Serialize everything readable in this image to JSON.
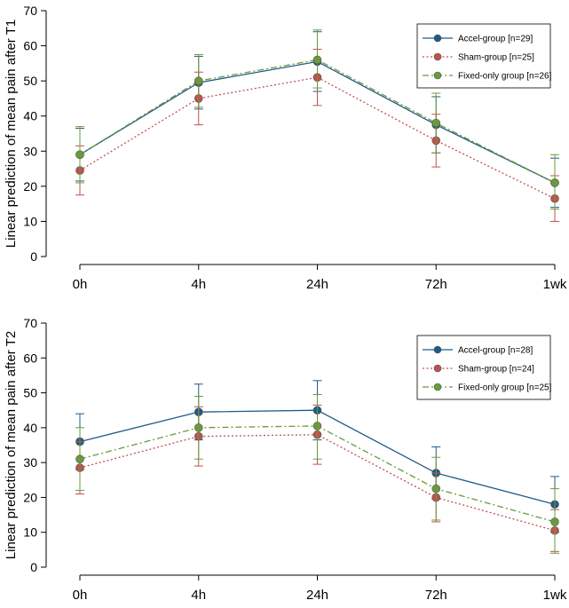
{
  "chart_data": [
    {
      "type": "line",
      "title": "",
      "xlabel": "",
      "ylabel": "Linear prediction of mean pain after T1",
      "categories": [
        "0h",
        "4h",
        "24h",
        "72h",
        "1wk"
      ],
      "ylim": [
        0,
        70
      ],
      "yticks": [
        0,
        10,
        20,
        30,
        40,
        50,
        60,
        70
      ],
      "grid": false,
      "legend_position": "top-right",
      "series": [
        {
          "name": "Accel-group [n=29]",
          "values": [
            29,
            49.5,
            55.5,
            37.5,
            21
          ],
          "lower": [
            21.5,
            42,
            47,
            29.5,
            14
          ],
          "upper": [
            36.5,
            57,
            64,
            45.5,
            28
          ],
          "color": "#1f5b86",
          "dash": "solid"
        },
        {
          "name": "Sham-group [n=25]",
          "values": [
            24.5,
            45,
            51,
            33,
            16.5
          ],
          "lower": [
            17.5,
            37.5,
            43,
            25.5,
            10
          ],
          "upper": [
            31.5,
            52.5,
            59,
            40.5,
            23
          ],
          "color": "#c0504d",
          "dash": "dotted"
        },
        {
          "name": "Fixed-only group [n=26]",
          "values": [
            29,
            50,
            56,
            38,
            21
          ],
          "lower": [
            21,
            42.5,
            48,
            29.5,
            13.5
          ],
          "upper": [
            37,
            57.5,
            64.5,
            46.5,
            29
          ],
          "color": "#6b9a3a",
          "dash": "dashdot"
        }
      ]
    },
    {
      "type": "line",
      "title": "",
      "xlabel": "",
      "ylabel": "Linear prediction of mean pain after T2",
      "categories": [
        "0h",
        "4h",
        "24h",
        "72h",
        "1wk"
      ],
      "ylim": [
        0,
        70
      ],
      "yticks": [
        0,
        10,
        20,
        30,
        40,
        50,
        60,
        70
      ],
      "grid": false,
      "legend_position": "top-right",
      "series": [
        {
          "name": "Accel-group [n=28]",
          "values": [
            36,
            44.5,
            45,
            27,
            18
          ],
          "lower": [
            28,
            36.5,
            36.5,
            19.5,
            10
          ],
          "upper": [
            44,
            52.5,
            53.5,
            34.5,
            26
          ],
          "color": "#1f5b86",
          "dash": "solid"
        },
        {
          "name": "Sham-group [n=24]",
          "values": [
            28.5,
            37.5,
            38,
            20,
            10.5
          ],
          "lower": [
            21,
            29,
            29.5,
            13,
            4.5
          ],
          "upper": [
            36,
            46,
            46.5,
            27,
            16.5
          ],
          "color": "#c0504d",
          "dash": "dotted"
        },
        {
          "name": "Fixed-only group [n=25]",
          "values": [
            31,
            40,
            40.5,
            22.5,
            13
          ],
          "lower": [
            22,
            31,
            31,
            13.5,
            4
          ],
          "upper": [
            40,
            49,
            49.5,
            31.5,
            22.5
          ],
          "color": "#6b9a3a",
          "dash": "dashdot"
        }
      ]
    }
  ]
}
